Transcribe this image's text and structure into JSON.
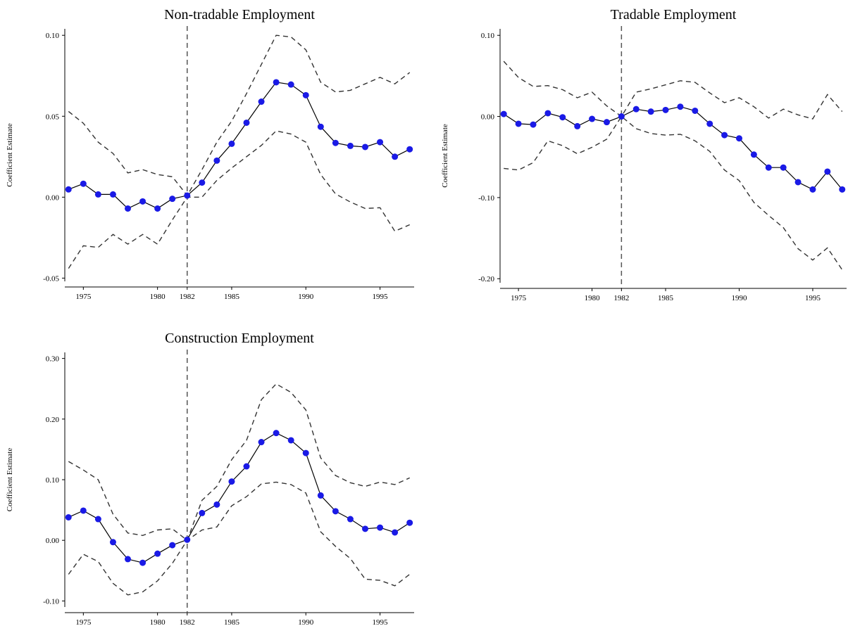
{
  "chart_data": [
    {
      "type": "line",
      "title": "Non-tradable Employment",
      "ylabel": "Coefficient Estimate",
      "x": [
        1974,
        1975,
        1976,
        1977,
        1978,
        1979,
        1980,
        1981,
        1982,
        1983,
        1984,
        1985,
        1986,
        1987,
        1988,
        1989,
        1990,
        1991,
        1992,
        1993,
        1994,
        1995,
        1996,
        1997
      ],
      "values": [
        0.0048,
        0.0083,
        0.0017,
        0.0017,
        -0.007,
        -0.0026,
        -0.007,
        -0.001,
        0.001,
        0.009,
        0.0226,
        0.033,
        0.046,
        0.059,
        0.071,
        0.0696,
        0.063,
        0.0435,
        0.0335,
        0.0317,
        0.031,
        0.034,
        0.025,
        0.0296
      ],
      "upper": [
        0.053,
        0.0457,
        0.034,
        0.027,
        0.015,
        0.017,
        0.014,
        0.0126,
        0.001,
        0.017,
        0.034,
        0.047,
        0.064,
        0.082,
        0.1,
        0.099,
        0.091,
        0.071,
        0.065,
        0.066,
        0.07,
        0.074,
        0.07,
        0.077
      ],
      "lower": [
        -0.044,
        -0.03,
        -0.031,
        -0.023,
        -0.029,
        -0.023,
        -0.029,
        -0.014,
        0,
        0,
        0.0104,
        0.018,
        0.025,
        0.032,
        0.041,
        0.039,
        0.034,
        0.014,
        0.002,
        -0.003,
        -0.007,
        -0.0065,
        -0.021,
        -0.017
      ],
      "marker_color": "#1a1ae6",
      "line_color": "#000000",
      "ci_color": "#333333",
      "vline": 1982,
      "xlim": [
        1973.75,
        1997.3
      ],
      "xticks": [
        1975,
        1980,
        1982,
        1985,
        1990,
        1995
      ],
      "ylim": [
        -0.052,
        0.104
      ],
      "yticks": [
        {
          "value": 0.1,
          "label": "0.10"
        },
        0.05,
        {
          "value": 0,
          "label": "0.00"
        },
        -0.05
      ]
    },
    {
      "type": "line",
      "title": "Tradable Employment",
      "ylabel": "Coefficient Estimate",
      "x": [
        1974,
        1975,
        1976,
        1977,
        1978,
        1979,
        1980,
        1981,
        1982,
        1983,
        1984,
        1985,
        1986,
        1987,
        1988,
        1989,
        1990,
        1991,
        1992,
        1993,
        1994,
        1995,
        1996,
        1997
      ],
      "values": [
        0.003,
        -0.009,
        -0.01,
        0.004,
        -0.001,
        -0.012,
        -0.003,
        -0.007,
        0,
        0.009,
        0.006,
        0.008,
        0.012,
        0.007,
        -0.009,
        -0.023,
        -0.027,
        -0.047,
        -0.063,
        -0.063,
        -0.081,
        -0.09,
        -0.068,
        -0.09
      ],
      "upper": [
        0.068,
        0.048,
        0.037,
        0.038,
        0.033,
        0.023,
        0.03,
        0.013,
        0,
        0.03,
        0.034,
        0.039,
        0.044,
        0.042,
        0.029,
        0.017,
        0.023,
        0.012,
        -0.002,
        0.009,
        0.002,
        -0.003,
        0.027,
        0.006
      ],
      "lower": [
        -0.064,
        -0.066,
        -0.057,
        -0.03,
        -0.036,
        -0.046,
        -0.038,
        -0.028,
        0,
        -0.015,
        -0.021,
        -0.023,
        -0.022,
        -0.03,
        -0.043,
        -0.066,
        -0.079,
        -0.106,
        -0.122,
        -0.137,
        -0.163,
        -0.177,
        -0.162,
        -0.189
      ],
      "marker_color": "#1a1ae6",
      "line_color": "#000000",
      "ci_color": "#333333",
      "vline": 1982,
      "xlim": [
        1973.75,
        1997.3
      ],
      "xticks": [
        1975,
        1980,
        1982,
        1985,
        1990,
        1995
      ],
      "ylim": [
        -0.205,
        0.108
      ],
      "yticks": [
        {
          "value": 0.1,
          "label": "0.10"
        },
        {
          "value": 0,
          "label": "0.00"
        },
        {
          "value": -0.1,
          "label": "-0.10"
        },
        {
          "value": -0.2,
          "label": "-0.20"
        }
      ]
    },
    {
      "type": "line",
      "title": "Construction Employment",
      "ylabel": "Coefficient Estimate",
      "x": [
        1974,
        1975,
        1976,
        1977,
        1978,
        1979,
        1980,
        1981,
        1982,
        1983,
        1984,
        1985,
        1986,
        1987,
        1988,
        1989,
        1990,
        1991,
        1992,
        1993,
        1994,
        1995,
        1996,
        1997
      ],
      "values": [
        0.038,
        0.049,
        0.035,
        -0.003,
        -0.031,
        -0.037,
        -0.022,
        -0.008,
        0.001,
        0.045,
        0.059,
        0.097,
        0.122,
        0.162,
        0.177,
        0.165,
        0.144,
        0.074,
        0.048,
        0.035,
        0.019,
        0.021,
        0.013,
        0.029
      ],
      "upper": [
        0.13,
        0.116,
        0.1,
        0.043,
        0.012,
        0.008,
        0.017,
        0.019,
        0,
        0.066,
        0.089,
        0.133,
        0.165,
        0.232,
        0.258,
        0.244,
        0.215,
        0.136,
        0.107,
        0.095,
        0.089,
        0.096,
        0.092,
        0.103
      ],
      "lower": [
        -0.056,
        -0.023,
        -0.035,
        -0.071,
        -0.09,
        -0.085,
        -0.067,
        -0.038,
        0,
        0.017,
        0.022,
        0.057,
        0.072,
        0.093,
        0.096,
        0.092,
        0.078,
        0.014,
        -0.01,
        -0.03,
        -0.064,
        -0.066,
        -0.075,
        -0.056
      ],
      "marker_color": "#1a1ae6",
      "line_color": "#000000",
      "ci_color": "#333333",
      "vline": 1982,
      "xlim": [
        1973.75,
        1997.3
      ],
      "xticks": [
        1975,
        1980,
        1982,
        1985,
        1990,
        1995
      ],
      "ylim": [
        -0.11,
        0.31
      ],
      "yticks": [
        {
          "value": 0.3,
          "label": "0.30"
        },
        {
          "value": 0.2,
          "label": "0.20"
        },
        {
          "value": 0.1,
          "label": "0.10"
        },
        {
          "value": 0,
          "label": "0.00"
        },
        {
          "value": -0.1,
          "label": "-0.10"
        }
      ]
    }
  ]
}
